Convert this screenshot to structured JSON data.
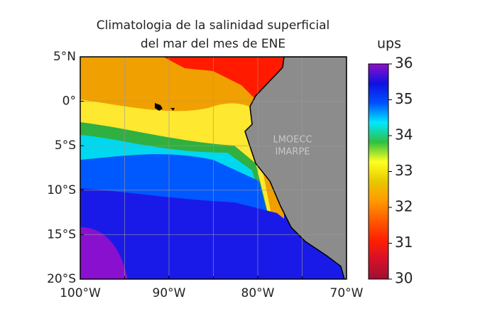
{
  "chart_data": {
    "type": "map",
    "title": [
      "Climatologia de la salinidad superficial",
      "del mar del mes de ENE"
    ],
    "xlim": [
      -100,
      -70
    ],
    "ylim": [
      -20,
      5
    ],
    "xticks": [
      {
        "value": -100,
        "label": "100°W"
      },
      {
        "value": -90,
        "label": "90°W"
      },
      {
        "value": -80,
        "label": "80°W"
      },
      {
        "value": -70,
        "label": "70°W"
      }
    ],
    "xminor": [
      -95,
      -85,
      -75
    ],
    "yticks": [
      {
        "value": 5,
        "label": "5°N"
      },
      {
        "value": 0,
        "label": "0°"
      },
      {
        "value": -5,
        "label": "5°S"
      },
      {
        "value": -10,
        "label": "10°S"
      },
      {
        "value": -15,
        "label": "15°S"
      },
      {
        "value": -20,
        "label": "20°S"
      }
    ],
    "grid": true,
    "watermark": [
      "LMOECC",
      "IMARPE"
    ],
    "colorbar": {
      "label": "ups",
      "lim": [
        30,
        36
      ],
      "ticks": [
        30,
        31,
        32,
        33,
        34,
        35,
        36
      ],
      "colormap": [
        "#9e1030",
        "#d5102a",
        "#ff2000",
        "#ff5a00",
        "#ff9a00",
        "#e8c800",
        "#ffff20",
        "#2fc040",
        "#00e8ff",
        "#0050ff",
        "#1010e0",
        "#9010c8"
      ]
    }
  }
}
